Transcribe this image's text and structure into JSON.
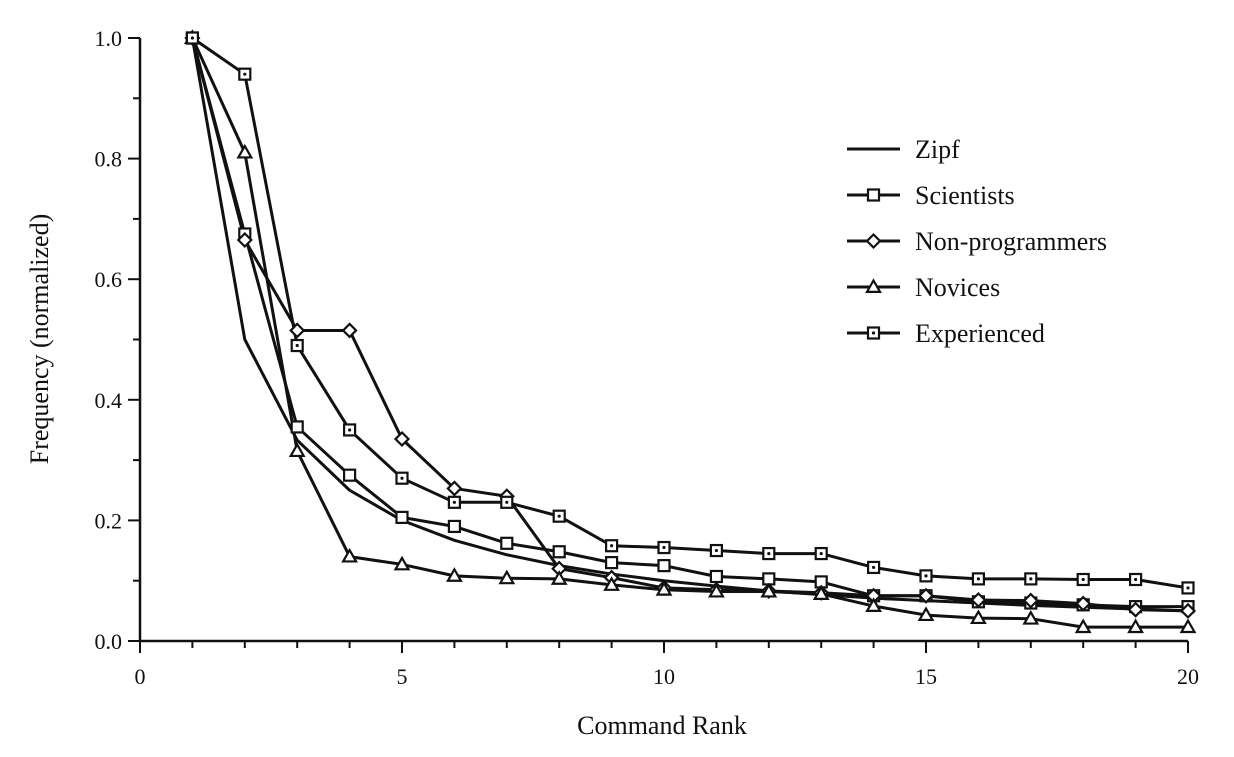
{
  "chart_data": {
    "type": "line",
    "xlabel": "Command Rank",
    "ylabel": "Frequency (normalized)",
    "xlim": [
      0,
      20
    ],
    "ylim": [
      0,
      1.0
    ],
    "x_ticks": [
      0,
      5,
      10,
      15,
      20
    ],
    "x_tick_labels": [
      "0",
      "5",
      "10",
      "15",
      "20"
    ],
    "y_ticks": [
      0,
      0.2,
      0.4,
      0.6,
      0.8,
      1.0
    ],
    "y_tick_labels": [
      "0.0",
      "0.2",
      "0.4",
      "0.6",
      "0.8",
      "1.0"
    ],
    "grid": false,
    "legend_position": "right",
    "x": [
      1,
      2,
      3,
      4,
      5,
      6,
      7,
      8,
      9,
      10,
      11,
      12,
      13,
      14,
      15,
      16,
      17,
      18,
      19,
      20
    ],
    "series": [
      {
        "name": "Zipf",
        "marker": "none",
        "values": [
          1.0,
          0.5,
          0.333,
          0.25,
          0.2,
          0.167,
          0.143,
          0.125,
          0.111,
          0.1,
          0.091,
          0.083,
          0.077,
          0.071,
          0.067,
          0.063,
          0.059,
          0.056,
          0.053,
          0.05
        ]
      },
      {
        "name": "Scientists",
        "marker": "square",
        "values": [
          1.0,
          0.675,
          0.355,
          0.275,
          0.205,
          0.19,
          0.162,
          0.148,
          0.13,
          0.125,
          0.107,
          0.103,
          0.098,
          0.075,
          0.075,
          0.065,
          0.063,
          0.06,
          0.057,
          0.057
        ]
      },
      {
        "name": "Non-programmers",
        "marker": "diamond",
        "values": [
          1.0,
          0.665,
          0.515,
          0.515,
          0.335,
          0.253,
          0.24,
          0.12,
          0.105,
          0.088,
          0.085,
          0.083,
          0.08,
          0.075,
          0.075,
          0.068,
          0.067,
          0.062,
          0.052,
          0.05
        ]
      },
      {
        "name": "Novices",
        "marker": "triangle",
        "values": [
          1.0,
          0.81,
          0.315,
          0.14,
          0.127,
          0.108,
          0.104,
          0.103,
          0.093,
          0.085,
          0.082,
          0.082,
          0.078,
          0.058,
          0.043,
          0.038,
          0.037,
          0.023,
          0.023,
          0.023
        ]
      },
      {
        "name": "Experienced",
        "marker": "dot-square",
        "values": [
          1.0,
          0.94,
          0.49,
          0.35,
          0.27,
          0.23,
          0.23,
          0.207,
          0.158,
          0.155,
          0.15,
          0.145,
          0.145,
          0.122,
          0.108,
          0.103,
          0.103,
          0.102,
          0.102,
          0.088
        ]
      }
    ]
  }
}
